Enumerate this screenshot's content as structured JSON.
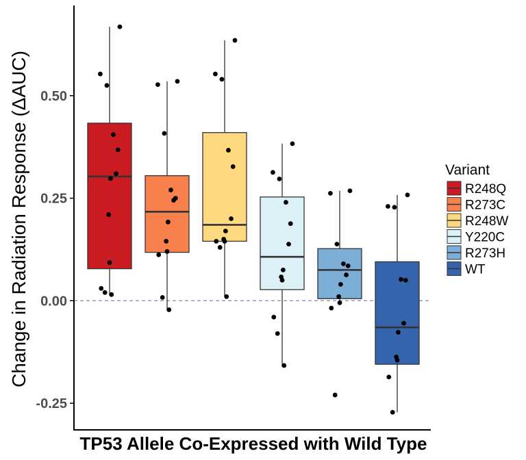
{
  "chart_data": {
    "type": "box",
    "xlabel": "TP53 Allele Co-Expressed with Wild Type",
    "ylabel": "Change in Radiation Response (ΔAUC)",
    "ylim": [
      -0.315,
      0.72
    ],
    "yticks": [
      -0.25,
      0.0,
      0.25,
      0.5
    ],
    "ytick_labels": [
      "-0.25",
      "0.00",
      "0.25",
      "0.50"
    ],
    "reference_line": 0.0,
    "legend": {
      "title": "Variant",
      "placement": "right"
    },
    "categories": [
      "R248Q",
      "R273C",
      "R248W",
      "Y220C",
      "R273H",
      "WT"
    ],
    "colors": {
      "R248Q": "#cb1b22",
      "R273C": "#f8804d",
      "R248W": "#ffd97f",
      "Y220C": "#dcf0f7",
      "R273H": "#7daed5",
      "WT": "#3563ac",
      "reference_line": "#8e8ec0",
      "points": "#000000"
    },
    "series": [
      {
        "name": "R248Q",
        "box": {
          "min": 0.015,
          "q1": 0.078,
          "median": 0.303,
          "q3": 0.433,
          "max": 0.668
        },
        "points": [
          0.668,
          0.553,
          0.525,
          0.405,
          0.368,
          0.31,
          0.298,
          0.21,
          0.093,
          0.03,
          0.02,
          0.015
        ]
      },
      {
        "name": "R273C",
        "box": {
          "min": -0.022,
          "q1": 0.118,
          "median": 0.217,
          "q3": 0.305,
          "max": 0.535
        },
        "points": [
          0.535,
          0.527,
          0.408,
          0.27,
          0.25,
          0.245,
          0.192,
          0.145,
          0.12,
          0.112,
          0.008,
          -0.022
        ]
      },
      {
        "name": "R248W",
        "box": {
          "min": 0.01,
          "q1": 0.145,
          "median": 0.185,
          "q3": 0.41,
          "max": 0.635
        },
        "points": [
          0.635,
          0.553,
          0.54,
          0.367,
          0.327,
          0.2,
          0.17,
          0.15,
          0.145,
          0.145,
          0.13,
          0.01
        ]
      },
      {
        "name": "Y220C",
        "box": {
          "min": -0.158,
          "q1": 0.027,
          "median": 0.107,
          "q3": 0.253,
          "max": 0.383
        },
        "points": [
          0.383,
          0.313,
          0.297,
          0.24,
          0.188,
          0.138,
          0.075,
          0.058,
          0.05,
          -0.04,
          -0.08,
          -0.158
        ]
      },
      {
        "name": "R273H",
        "box": {
          "min": -0.005,
          "q1": 0.005,
          "median": 0.075,
          "q3": 0.127,
          "max": 0.268
        },
        "points": [
          0.268,
          0.262,
          0.138,
          0.09,
          0.085,
          0.063,
          0.04,
          0.01,
          -0.005,
          -0.018,
          -0.23
        ]
      },
      {
        "name": "WT",
        "box": {
          "min": -0.272,
          "q1": -0.155,
          "median": -0.065,
          "q3": 0.095,
          "max": 0.258
        },
        "points": [
          0.258,
          0.23,
          0.228,
          0.052,
          0.05,
          -0.055,
          -0.077,
          -0.137,
          -0.145,
          -0.186,
          -0.272
        ]
      }
    ]
  }
}
